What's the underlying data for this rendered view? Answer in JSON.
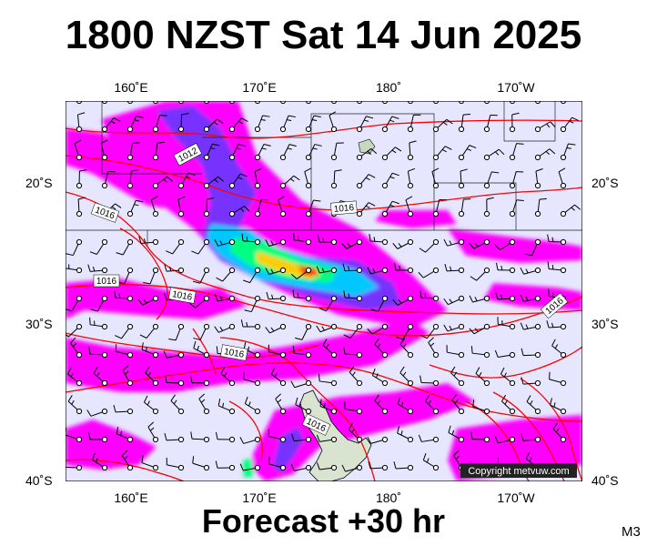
{
  "title": "1800 NZST Sat 14 Jun 2025",
  "footer": "Forecast +30 hr",
  "model_label": "M3",
  "copyright": "Copyright metvuw.com",
  "axes": {
    "longitude_labels_top": [
      "160˚E",
      "170˚E",
      "180˚",
      "170˚W"
    ],
    "longitude_labels_bottom": [
      "160˚E",
      "170˚E",
      "180˚",
      "170˚W"
    ],
    "latitude_labels_left": [
      "20˚S",
      "30˚S",
      "40˚S"
    ],
    "latitude_labels_right": [
      "20˚S",
      "30˚S",
      "40˚S"
    ]
  },
  "isobar_labels": [
    "1012",
    "1016",
    "1016",
    "1016",
    "1016",
    "1016",
    "1016",
    "1016"
  ],
  "colors": {
    "background": "#e6e6ff",
    "isobar": "#ff0000",
    "rain_light": "#ff00ff",
    "rain_medium": "#7733ff",
    "rain_heavy": "#00c8ff",
    "rain_very_heavy": "#ffcc00"
  }
}
